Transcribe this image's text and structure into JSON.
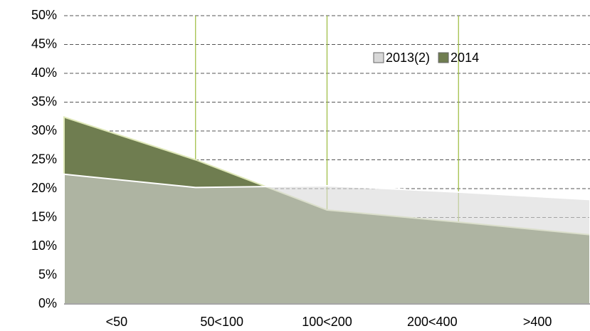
{
  "chart_data": {
    "type": "area",
    "categories": [
      "<50",
      "50<100",
      "100<200",
      "200<400",
      ">400"
    ],
    "series": [
      {
        "name": "2013(2)",
        "color": "#d8d8d8",
        "values": [
          22.5,
          20.2,
          20.5,
          19.4,
          18.1
        ]
      },
      {
        "name": "2014",
        "color": "#6f7d50",
        "values": [
          32.4,
          25,
          16.3,
          14.2,
          12
        ]
      }
    ],
    "ylim": [
      0,
      50
    ],
    "yticks": [
      {
        "value": 0,
        "label": "0%"
      },
      {
        "value": 5,
        "label": "5%"
      },
      {
        "value": 10,
        "label": "10%"
      },
      {
        "value": 15,
        "label": "15%"
      },
      {
        "value": 20,
        "label": "20%"
      },
      {
        "value": 25,
        "label": "25%"
      },
      {
        "value": 30,
        "label": "30%"
      },
      {
        "value": 35,
        "label": "35%"
      },
      {
        "value": 40,
        "label": "40%"
      },
      {
        "value": 45,
        "label": "45%"
      },
      {
        "value": 50,
        "label": "50%"
      }
    ],
    "grid": true,
    "legend": "top-right"
  }
}
